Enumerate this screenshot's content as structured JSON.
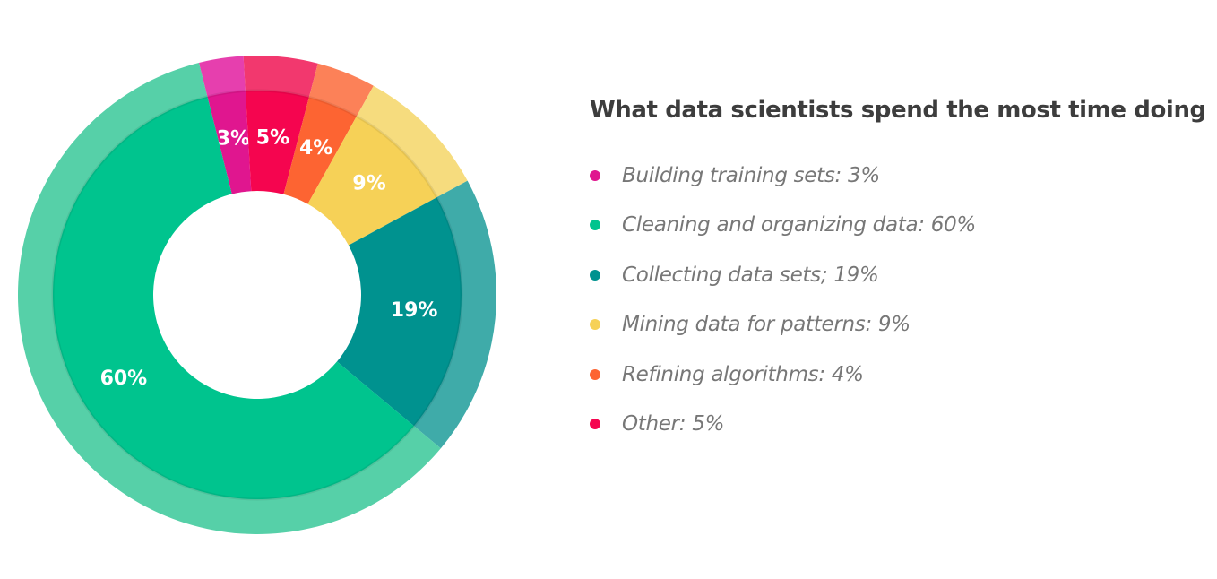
{
  "chart_data": {
    "type": "pie",
    "variant": "donut",
    "title": "What data scientists spend the most time doing",
    "legend_position": "right",
    "slices": [
      {
        "legend": "Building training sets: 3%",
        "value": 3,
        "label": "3%",
        "color": "#e0168f",
        "outer_color": "#e63fae"
      },
      {
        "legend": "Other: 5%",
        "value": 5,
        "label": "5%",
        "color": "#f5054f",
        "outer_color": "#f2386e"
      },
      {
        "legend": "Refining algorithms: 4%",
        "value": 4,
        "label": "4%",
        "color": "#fd6432",
        "outer_color": "#fc8158"
      },
      {
        "legend": "Mining data for patterns: 9%",
        "value": 9,
        "label": "9%",
        "color": "#f6d157",
        "outer_color": "#f6dc7e"
      },
      {
        "legend": "Collecting data sets; 19%",
        "value": 19,
        "label": "19%",
        "color": "#00928f",
        "outer_color": "#3faba9"
      },
      {
        "legend": "Cleaning and organizing data: 60%",
        "value": 60,
        "label": "60%",
        "color": "#00c48e",
        "outer_color": "#56d0a8"
      }
    ],
    "legend_order": [
      "Building training sets: 3%",
      "Cleaning and organizing data: 60%",
      "Collecting data sets; 19%",
      "Mining data for patterns: 9%",
      "Refining algorithms: 4%",
      "Other: 5%"
    ]
  }
}
